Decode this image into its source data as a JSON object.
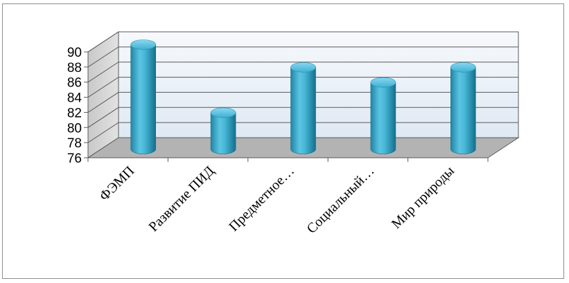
{
  "chart_data": {
    "type": "bar",
    "style": "3d-cylinder",
    "categories": [
      "ФЭМП",
      "Развитие ПИД",
      "Предметное…",
      "Социальный…",
      "Мир природы"
    ],
    "values": [
      90,
      81,
      87,
      85,
      87
    ],
    "ylim": [
      76,
      90
    ],
    "yticks": [
      "76",
      "78",
      "80",
      "82",
      "84",
      "86",
      "88",
      "90"
    ],
    "grid": true,
    "legend": "none",
    "title": "",
    "xlabel": "",
    "ylabel": ""
  },
  "colors": {
    "bar": "#3aaed0",
    "bar_dark": "#1a7e9c",
    "bar_light": "#9fe0f2",
    "back_wall": "#e4eef6",
    "floor": "#b3b3b3",
    "side_wall": "#d4d4d4",
    "grid": "#595959"
  }
}
